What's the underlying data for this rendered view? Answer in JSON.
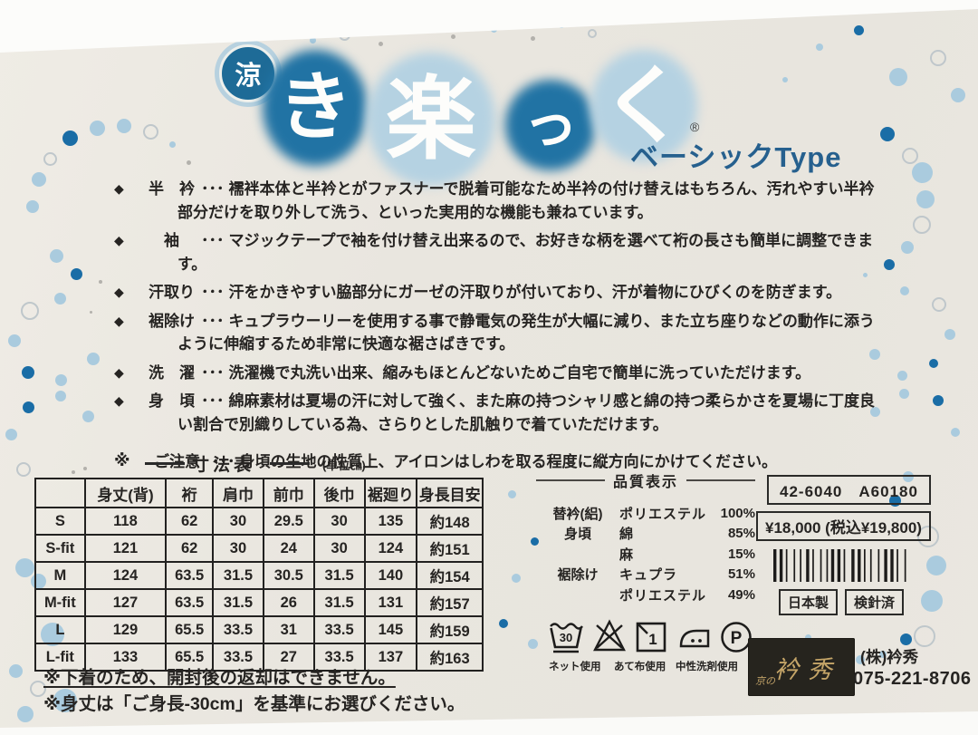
{
  "logo": {
    "badge": "涼",
    "chars": [
      "き",
      "楽",
      "っ",
      "く"
    ],
    "registered": "®",
    "subtitle": "ベーシックType"
  },
  "features": {
    "marker": "◆",
    "sep": "･･･",
    "items": [
      {
        "label": "半　衿",
        "text": "襦袢本体と半衿とがファスナーで脱着可能なため半衿の付け替えはもちろん、汚れやすい半衿部分だけを取り外して洗う、といった実用的な機能も兼ねています。"
      },
      {
        "label": "　袖　",
        "text": "マジックテープで袖を付け替え出来るので、お好きな柄を選べて裄の長さも簡単に調整できます。"
      },
      {
        "label": "汗取り",
        "text": "汗をかきやすい脇部分にガーゼの汗取りが付いており、汗が着物にひびくのを防ぎます。"
      },
      {
        "label": "裾除け",
        "text": "キュプラウーリーを使用する事で静電気の発生が大幅に減り、また立ち座りなどの動作に添うように伸縮するため非常に快適な裾さばきです。"
      },
      {
        "label": "洗　濯",
        "text": "洗濯機で丸洗い出来、縮みもほとんどないためご自宅で簡単に洗っていただけます。"
      },
      {
        "label": "身　頃",
        "text": "綿麻素材は夏場の汗に対して強く、また麻の持つシャリ感と綿の持つ柔らかさを夏場に丁度良い割合で別織りしている為、さらりとした肌触りで着ていただけます。"
      }
    ],
    "notice": {
      "marker": "※",
      "label": "ご注意",
      "text": "身頃の生地の性質上、アイロンはしわを取る程度に縦方向にかけてください。"
    }
  },
  "size_table": {
    "title": "寸法表",
    "unit": "(単位㎝)",
    "headers": [
      "",
      "身丈(背)",
      "裄",
      "肩巾",
      "前巾",
      "後巾",
      "裾廻り",
      "身長目安"
    ],
    "rows": [
      [
        "S",
        "118",
        "62",
        "30",
        "29.5",
        "30",
        "135",
        "約148"
      ],
      [
        "S-fit",
        "121",
        "62",
        "30",
        "24",
        "30",
        "124",
        "約151"
      ],
      [
        "M",
        "124",
        "63.5",
        "31.5",
        "30.5",
        "31.5",
        "140",
        "約154"
      ],
      [
        "M-fit",
        "127",
        "63.5",
        "31.5",
        "26",
        "31.5",
        "131",
        "約157"
      ],
      [
        "L",
        "129",
        "65.5",
        "33.5",
        "31",
        "33.5",
        "145",
        "約159"
      ],
      [
        "L-fit",
        "133",
        "65.5",
        "33.5",
        "27",
        "33.5",
        "137",
        "約163"
      ]
    ]
  },
  "quality": {
    "title": "品質表示",
    "rows": [
      {
        "part": "替衿(絽)",
        "material": "ポリエステル",
        "percent": "100%"
      },
      {
        "part": "身頃",
        "material": "綿",
        "percent": "85%"
      },
      {
        "part": "",
        "material": "麻",
        "percent": "15%"
      },
      {
        "part": "裾除け",
        "material": "キュプラ",
        "percent": "51%"
      },
      {
        "part": "",
        "material": "ポリエステル",
        "percent": "49%"
      }
    ]
  },
  "product": {
    "code": "42-6040　A60180",
    "price": "¥18,000 (税込¥19,800)",
    "origin": "日本製",
    "inspection": "検針済"
  },
  "care": {
    "wash_temp": "30",
    "labels": [
      "ネット使用",
      "あて布使用",
      "中性洗剤使用"
    ]
  },
  "company": {
    "logo_small": "京の",
    "logo_big": "衿秀",
    "name": "(株)衿秀",
    "phone": "075-221-8706"
  },
  "footnotes": [
    "※下着のため、開封後の返却はできません。",
    "※身丈は「ご身長-30cm」を基準にお選びください。"
  ],
  "colors": {
    "accent_dark_blue": "#1a6da6",
    "accent_light_blue": "#aacbde",
    "subtitle_blue": "#26608e",
    "paper": "#e9e6df",
    "brand_gold": "#c5a568",
    "brand_black": "#26241e"
  }
}
